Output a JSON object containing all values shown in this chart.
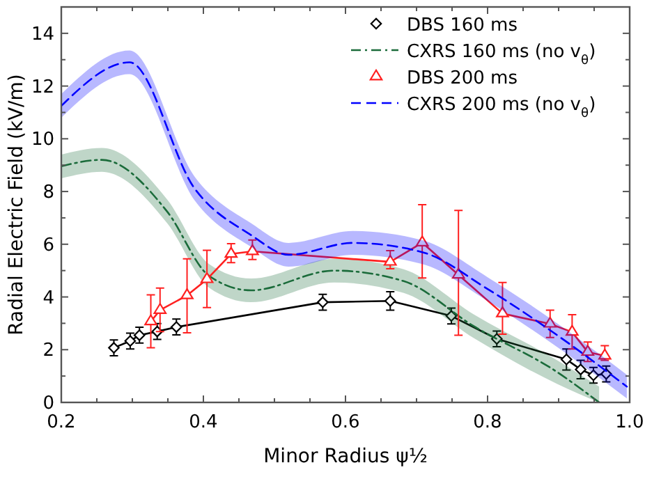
{
  "chart_data": {
    "type": "line",
    "xlabel": "Minor Radius ψ½",
    "ylabel": "Radial Electric Field (kV/m)",
    "xlim": [
      0.2,
      1.0
    ],
    "ylim": [
      0,
      15
    ],
    "xticks": [
      0.2,
      {
        "value": 0.25,
        "label": null
      },
      {
        "value": 0.3,
        "label": null
      },
      {
        "value": 0.35,
        "label": null
      },
      0.4,
      {
        "value": 0.45,
        "label": null
      },
      {
        "value": 0.5,
        "label": null
      },
      {
        "value": 0.55,
        "label": null
      },
      0.6,
      {
        "value": 0.65,
        "label": null
      },
      {
        "value": 0.7,
        "label": null
      },
      {
        "value": 0.75,
        "label": null
      },
      0.8,
      {
        "value": 0.85,
        "label": null
      },
      {
        "value": 0.9,
        "label": null
      },
      {
        "value": 0.95,
        "label": null
      },
      {
        "value": 1.0,
        "label": "1.0"
      }
    ],
    "yticks": [
      0,
      {
        "value": 1,
        "label": null
      },
      2,
      {
        "value": 3,
        "label": null
      },
      4,
      {
        "value": 5,
        "label": null
      },
      6,
      {
        "value": 7,
        "label": null
      },
      8,
      {
        "value": 9,
        "label": null
      },
      10,
      {
        "value": 11,
        "label": null
      },
      12,
      {
        "value": 13,
        "label": null
      },
      14,
      {
        "value": 15,
        "label": null
      }
    ],
    "grid": false,
    "legend": "top right",
    "series": [
      {
        "name": "DBS 160 ms",
        "color": "#000000",
        "marker": "diamond",
        "line_style": "solid",
        "x": [
          0.274,
          0.297,
          0.31,
          0.335,
          0.362,
          0.568,
          0.663,
          0.749,
          0.813,
          0.911,
          0.931,
          0.949,
          0.967
        ],
        "values": [
          2.07,
          2.33,
          2.55,
          2.69,
          2.86,
          3.8,
          3.85,
          3.28,
          2.41,
          1.63,
          1.25,
          1.03,
          1.08
        ],
        "errors": [
          0.3,
          0.3,
          0.3,
          0.3,
          0.3,
          0.3,
          0.35,
          0.3,
          0.3,
          0.4,
          0.35,
          0.3,
          0.3
        ]
      },
      {
        "name": "CXRS 160 ms (no v$_{θ}$)",
        "color": "#1a6b3a",
        "marker": "none",
        "line_style": "dashdot",
        "x": [
          0.2,
          0.257,
          0.349,
          0.408,
          0.467,
          0.584,
          0.682,
          0.78,
          0.898,
          0.957
        ],
        "values": [
          8.96,
          9.2,
          7.24,
          4.8,
          4.25,
          5.0,
          4.6,
          2.9,
          1.15,
          0.0
        ],
        "lower": [
          8.5,
          8.75,
          6.8,
          4.35,
          3.8,
          4.55,
          4.15,
          2.45,
          0.7,
          0.0
        ],
        "upper": [
          9.4,
          9.65,
          7.7,
          5.25,
          4.7,
          5.45,
          5.05,
          3.35,
          1.6,
          0.6
        ]
      },
      {
        "name": "DBS 200 ms",
        "color": "#ff2020",
        "marker": "triangle",
        "line_style": "solid",
        "x": [
          0.326,
          0.339,
          0.377,
          0.405,
          0.439,
          0.469,
          0.663,
          0.708,
          0.759,
          0.821,
          0.888,
          0.919,
          0.941,
          0.965
        ],
        "values": [
          3.07,
          3.5,
          4.06,
          4.67,
          5.63,
          5.73,
          5.33,
          6.06,
          4.84,
          3.37,
          2.98,
          2.67,
          1.91,
          1.77
        ],
        "errors": [
          [
            2.07,
            4.08
          ],
          [
            2.69,
            4.34
          ],
          [
            2.64,
            5.45
          ],
          [
            3.6,
            5.77
          ],
          [
            5.3,
            6.02
          ],
          [
            5.42,
            6.16
          ],
          [
            5.07,
            5.76
          ],
          [
            4.72,
            7.5
          ],
          [
            2.55,
            7.28
          ],
          [
            2.59,
            4.55
          ],
          [
            2.46,
            3.5
          ],
          [
            2.03,
            3.33
          ],
          [
            1.55,
            2.29
          ],
          [
            1.6,
            2.15
          ]
        ]
      },
      {
        "name": "CXRS 200 ms (no v$_{θ}$)",
        "color": "#0000ff",
        "marker": "none",
        "line_style": "dashed",
        "x": [
          0.2,
          0.296,
          0.388,
          0.467,
          0.52,
          0.61,
          0.708,
          0.8,
          0.898,
          0.996
        ],
        "values": [
          11.25,
          12.9,
          8.1,
          6.35,
          5.6,
          6.05,
          5.7,
          4.3,
          2.55,
          0.6
        ],
        "lower": [
          10.8,
          12.45,
          7.65,
          5.9,
          5.15,
          5.6,
          5.25,
          3.85,
          2.1,
          0.15
        ],
        "upper": [
          11.7,
          13.35,
          8.55,
          6.8,
          6.05,
          6.5,
          6.15,
          4.75,
          3.0,
          1.05
        ]
      }
    ]
  }
}
